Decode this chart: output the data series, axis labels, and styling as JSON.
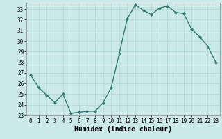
{
  "x": [
    0,
    1,
    2,
    3,
    4,
    5,
    6,
    7,
    8,
    9,
    10,
    11,
    12,
    13,
    14,
    15,
    16,
    17,
    18,
    19,
    20,
    21,
    22,
    23
  ],
  "y": [
    26.8,
    25.6,
    24.9,
    24.2,
    25.0,
    23.2,
    23.3,
    23.4,
    23.4,
    24.2,
    25.6,
    28.8,
    32.1,
    33.4,
    32.9,
    32.5,
    33.1,
    33.3,
    32.7,
    32.6,
    31.1,
    30.4,
    29.5,
    28.0
  ],
  "line_color": "#2d7a6e",
  "marker": "D",
  "marker_size": 2.0,
  "bg_color": "#cce9e9",
  "grid_color": "#afd4d4",
  "xlabel": "Humidex (Indice chaleur)",
  "xlim": [
    -0.5,
    23.5
  ],
  "ylim": [
    23,
    33.6
  ],
  "yticks": [
    23,
    24,
    25,
    26,
    27,
    28,
    29,
    30,
    31,
    32,
    33
  ],
  "xticks": [
    0,
    1,
    2,
    3,
    4,
    5,
    6,
    7,
    8,
    9,
    10,
    11,
    12,
    13,
    14,
    15,
    16,
    17,
    18,
    19,
    20,
    21,
    22,
    23
  ],
  "tick_fontsize": 5.5,
  "xlabel_fontsize": 7.0,
  "linewidth": 1.0
}
